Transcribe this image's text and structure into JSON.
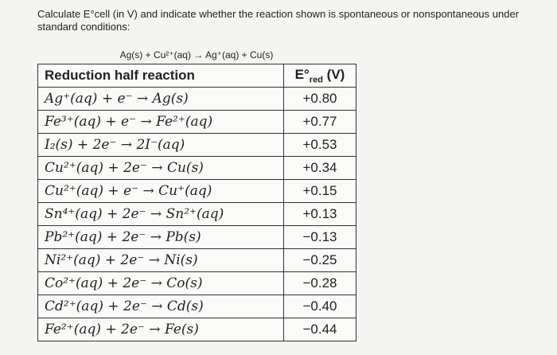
{
  "question": "Calculate E°cell (in V) and indicate whether the reaction shown is spontaneous or nonspontaneous under standard conditions:",
  "reaction": "Ag(s) + Cu²⁺(aq) → Ag⁺(aq) + Cu(s)",
  "table": {
    "header": {
      "reaction": "Reduction half reaction",
      "potential_symbol": "E°",
      "potential_subscript": "red",
      "potential_unit": "(V)"
    },
    "rows": [
      [
        "Ag⁺(aq) + e⁻ → Ag(s)",
        "+0.80"
      ],
      [
        "Fe³⁺(aq) + e⁻ → Fe²⁺(aq)",
        "+0.77"
      ],
      [
        "I₂(s) + 2e⁻ → 2I⁻(aq)",
        "+0.53"
      ],
      [
        "Cu²⁺(aq) + 2e⁻ → Cu(s)",
        "+0.34"
      ],
      [
        "Cu²⁺(aq) + e⁻ → Cu⁺(aq)",
        "+0.15"
      ],
      [
        "Sn⁴⁺(aq) + 2e⁻ → Sn²⁺(aq)",
        "+0.13"
      ],
      [
        "Pb²⁺(aq) + 2e⁻ → Pb(s)",
        "−0.13"
      ],
      [
        "Ni²⁺(aq) + 2e⁻ → Ni(s)",
        "−0.25"
      ],
      [
        "Co²⁺(aq) + 2e⁻ → Co(s)",
        "−0.28"
      ],
      [
        "Cd²⁺(aq) + 2e⁻ → Cd(s)",
        "−0.40"
      ],
      [
        "Fe²⁺(aq) + 2e⁻ → Fe(s)",
        "−0.44"
      ]
    ]
  }
}
